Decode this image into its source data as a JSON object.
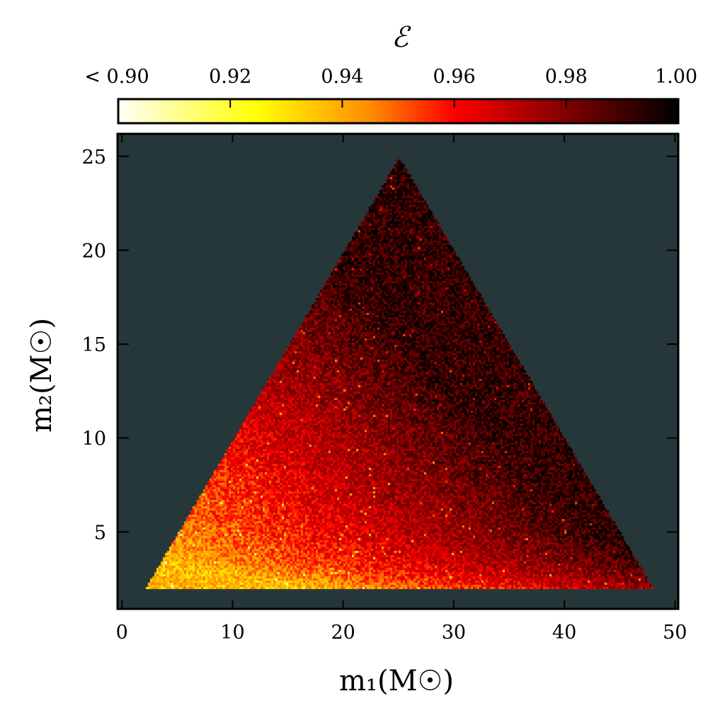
{
  "chart_data": {
    "type": "scatter",
    "title": "ℰ",
    "xlabel": "m₁(M☉)",
    "ylabel": "m₂(M☉)",
    "xlabel_parts": {
      "var": "m",
      "sub": "1",
      "unit": "(M",
      "unit_sub": "⊙",
      "close": ")"
    },
    "ylabel_parts": {
      "var": "m",
      "sub": "2",
      "unit": "(M",
      "unit_sub": "⊙",
      "close": ")"
    },
    "xlim": [
      -0.4,
      50.3
    ],
    "ylim": [
      0.9,
      26.2
    ],
    "xticks": [
      "0",
      "10",
      "20",
      "30",
      "40",
      "50"
    ],
    "yticks": [
      "5",
      "10",
      "15",
      "20",
      "25"
    ],
    "xtick_values": [
      0,
      10,
      20,
      30,
      40,
      50
    ],
    "ytick_values": [
      5,
      10,
      15,
      20,
      25
    ],
    "background_color": "#263739",
    "region_vertices": [
      [
        2,
        2
      ],
      [
        25,
        25
      ],
      [
        48,
        2
      ]
    ],
    "value_trend": "lowest match (~0.93-0.95) at small m1 and small m2 (bottom-left); highest (~0.99) towards large total mass and near the apex; bright band along m2≈2-3",
    "colorbar": {
      "label": "ℰ",
      "range": [
        0.9,
        1.0
      ],
      "ticks": [
        "< 0.90",
        "0.92",
        "0.94",
        "0.96",
        "0.98",
        "1.00"
      ],
      "tick_values": [
        0.9,
        0.92,
        0.94,
        0.96,
        0.98,
        1.0
      ],
      "colormap": "hot (reversed)",
      "position": "top",
      "stops": [
        "#fffff8",
        "#ffff00",
        "#ff8c00",
        "#ff0000",
        "#800000",
        "#000000"
      ]
    },
    "grid": false
  }
}
